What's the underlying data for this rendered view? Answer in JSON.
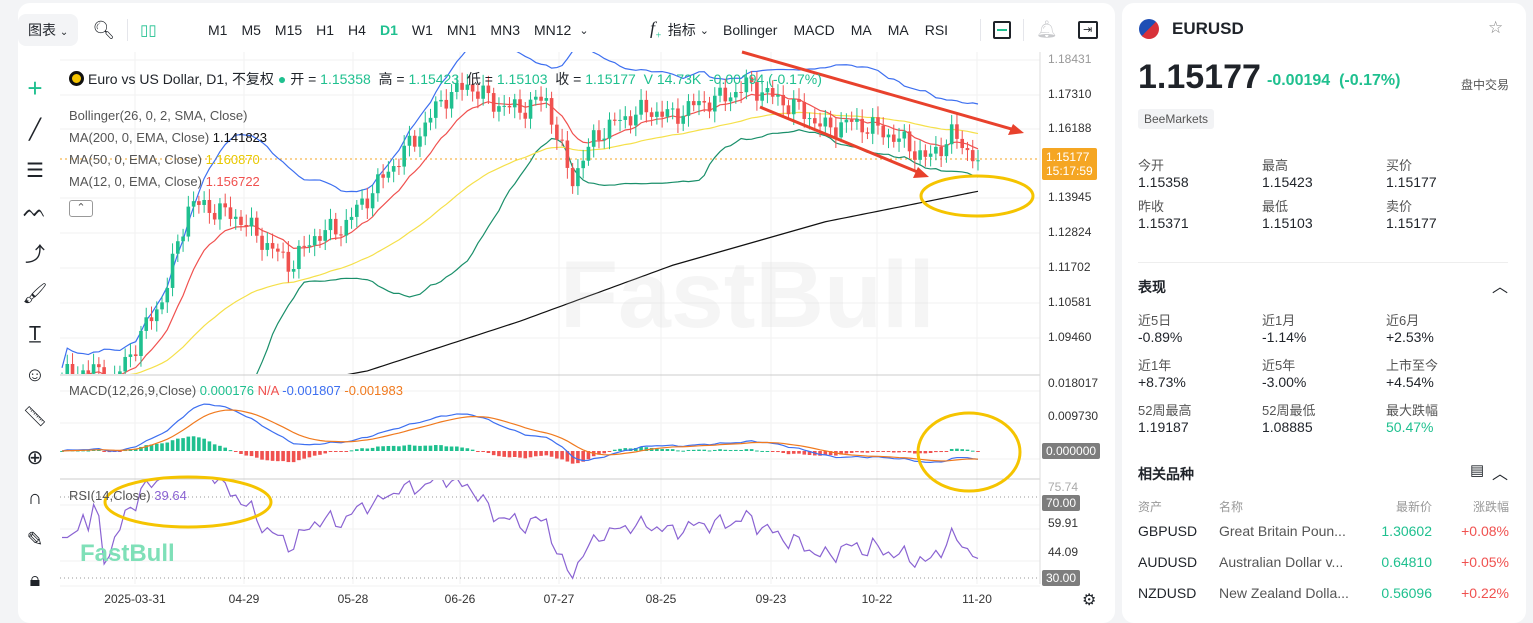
{
  "toolbar": {
    "chart_menu": "图表",
    "timeframes": [
      "M1",
      "M5",
      "M15",
      "H1",
      "H4",
      "D1",
      "W1",
      "MN1",
      "MN3",
      "MN12"
    ],
    "active_timeframe": "D1",
    "indicators_label": "指标",
    "quick_indicators": [
      "Bollinger",
      "MACD",
      "MA",
      "MA",
      "RSI"
    ]
  },
  "legend": {
    "symbol_title": "Euro vs US Dollar, D1, 不复权",
    "open_label": "开 =",
    "open": "1.15358",
    "high_label": "高 =",
    "high": "1.15423",
    "low_label": "低 =",
    "low": "1.15103",
    "close_label": "收 =",
    "close": "1.15177",
    "volume": "V 14.73K",
    "change": "-0.00194 (-0.17%)",
    "bollinger": "Bollinger(26, 0, 2, SMA, Close)",
    "ma200": "MA(200, 0, EMA, Close)",
    "ma200_val": "1.141823",
    "ma50": "MA(50, 0, EMA, Close)",
    "ma50_val": "1.160870",
    "ma12": "MA(12, 0, EMA, Close)",
    "ma12_val": "1.156722",
    "macd": "MACD(12,26,9,Close)",
    "macd_v1": "0.000176",
    "macd_v2": "N/A",
    "macd_v3": "-0.001807",
    "macd_v4": "-0.001983",
    "rsi": "RSI(14,Close)",
    "rsi_val": "39.64"
  },
  "price_axis": [
    "1.18431",
    "1.17310",
    "1.16188",
    "1.13945",
    "1.12824",
    "1.11702",
    "1.10581",
    "1.09460"
  ],
  "current_price_tag": {
    "price": "1.15177",
    "time": "15:17:59"
  },
  "macd_axis": [
    "0.018017",
    "0.009730"
  ],
  "macd_zero_tag": "0.000000",
  "rsi_axis": [
    "75.74",
    "59.91",
    "44.09"
  ],
  "rsi_tags": [
    "70.00",
    "30.00"
  ],
  "chart_data": {
    "type": "candlestick",
    "x_ticks": [
      "2025-03-31",
      "04-29",
      "05-28",
      "06-26",
      "07-27",
      "08-25",
      "09-23",
      "10-22",
      "11-20"
    ],
    "closes": [
      1.082,
      1.085,
      1.08,
      1.094,
      1.108,
      1.138,
      1.136,
      1.133,
      1.125,
      1.118,
      1.128,
      1.13,
      1.14,
      1.15,
      1.16,
      1.172,
      1.176,
      1.17,
      1.168,
      1.172,
      1.145,
      1.16,
      1.165,
      1.168,
      1.166,
      1.17,
      1.172,
      1.176,
      1.172,
      1.168,
      1.162,
      1.164,
      1.162,
      1.158,
      1.152,
      1.16,
      1.15177
    ],
    "ma200": [
      1.066,
      1.075,
      1.084,
      1.1,
      1.118,
      1.132,
      1.1418
    ],
    "colors": {
      "up": "#1fc08f",
      "down": "#f0514f",
      "bb": "#3d6ff0",
      "bb_lower": "#1a8f6a",
      "ma200": "#111111",
      "ma50": "#f5e04a",
      "ma12": "#f0514f",
      "macd": "#3d6ff0",
      "signal": "#f07a1f",
      "rsi": "#8a63d2"
    }
  },
  "watermark": "FastBull",
  "side": {
    "symbol": "EURUSD",
    "price": "1.15177",
    "change": "-0.00194",
    "change_pct": "(-0.17%)",
    "session": "盘中交易",
    "broker": "BeeMarkets",
    "stats": [
      {
        "k": "今开",
        "v": "1.15358"
      },
      {
        "k": "最高",
        "v": "1.15423"
      },
      {
        "k": "买价",
        "v": "1.15177"
      },
      {
        "k": "昨收",
        "v": "1.15371"
      },
      {
        "k": "最低",
        "v": "1.15103"
      },
      {
        "k": "卖价",
        "v": "1.15177"
      }
    ],
    "perf_title": "表现",
    "perf": [
      {
        "k": "近5日",
        "v": "-0.89%"
      },
      {
        "k": "近1月",
        "v": "-1.14%"
      },
      {
        "k": "近6月",
        "v": "+2.53%"
      },
      {
        "k": "近1年",
        "v": "+8.73%"
      },
      {
        "k": "近5年",
        "v": "-3.00%"
      },
      {
        "k": "上市至今",
        "v": "+4.54%"
      },
      {
        "k": "52周最高",
        "v": "1.19187"
      },
      {
        "k": "52周最低",
        "v": "1.08885"
      },
      {
        "k": "最大跌幅",
        "v": "50.47%"
      }
    ],
    "related_title": "相关品种",
    "related_headers": [
      "资产",
      "名称",
      "最新价",
      "涨跌幅"
    ],
    "related": [
      {
        "sym": "GBPUSD",
        "name": "Great Britain Poun...",
        "price": "1.30602",
        "chg": "+0.08%"
      },
      {
        "sym": "AUDUSD",
        "name": "Australian Dollar v...",
        "price": "0.64810",
        "chg": "+0.05%"
      },
      {
        "sym": "NZDUSD",
        "name": "New Zealand Dolla...",
        "price": "0.56096",
        "chg": "+0.22%"
      }
    ]
  }
}
